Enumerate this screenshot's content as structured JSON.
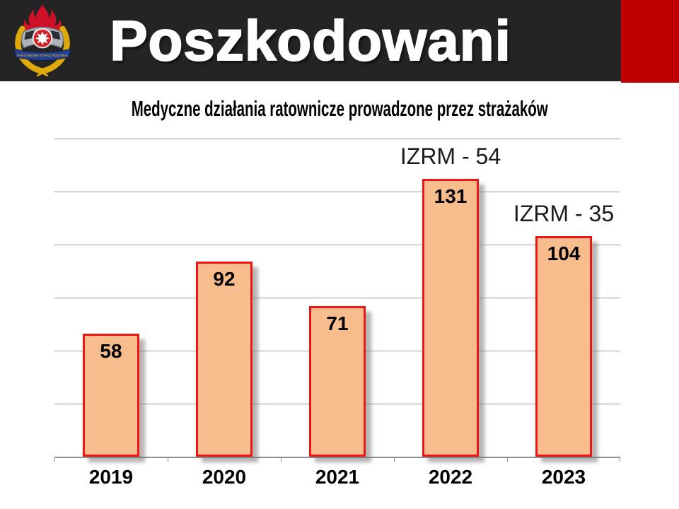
{
  "header": {
    "title": "Poszkodowani",
    "logo_icon": "panstwowa-straz-pozarna-emblem-icon",
    "logo_banner": "PAŃSTWOWA STRAŻ POŻARNA",
    "background_color": "#242424",
    "accent_block_color": "#C00000"
  },
  "chart_data": {
    "type": "bar",
    "title": "Medyczne działania ratownicze prowadzone przez strażaków",
    "categories": [
      "2019",
      "2020",
      "2021",
      "2022",
      "2023"
    ],
    "values": [
      58,
      92,
      71,
      131,
      104
    ],
    "data_labels": [
      58,
      92,
      71,
      131,
      104
    ],
    "annotations": [
      {
        "text": "IZRM - 54",
        "category": "2022"
      },
      {
        "text": "IZRM - 35",
        "category": "2023"
      }
    ],
    "xlabel": "",
    "ylabel": "",
    "ylim": [
      0,
      150
    ],
    "gridline_step": 25,
    "grid": true,
    "legend": false,
    "y_tick_labels_visible": false,
    "bar_fill_color": "#F7BD8D",
    "bar_border_color": "#F01414"
  }
}
